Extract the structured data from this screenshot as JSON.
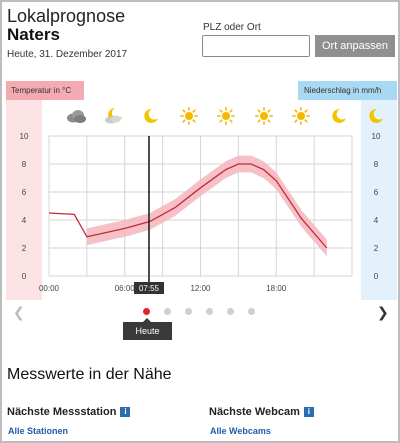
{
  "location": {
    "label": "Lokalprognose",
    "name": "Naters",
    "date": "Heute, 31. Dezember 2017"
  },
  "search": {
    "label": "PLZ oder Ort",
    "value": "",
    "placeholder": "",
    "button": "Ort anpassen"
  },
  "panel_labels": {
    "temperature": "Temperatur in °C",
    "precipitation": "Niederschlag in mm/h"
  },
  "weather_icons": [
    {
      "icon": "cloud-icon"
    },
    {
      "icon": "moon-cloud-icon"
    },
    {
      "icon": "moon-icon"
    },
    {
      "icon": "sun-icon"
    },
    {
      "icon": "sun-icon"
    },
    {
      "icon": "sun-icon"
    },
    {
      "icon": "sun-icon"
    },
    {
      "icon": "moon-icon"
    },
    {
      "icon": "moon-icon"
    }
  ],
  "chart_data": {
    "type": "line",
    "x_ticks": [
      "00:00",
      "06:00",
      "12:00",
      "18:00"
    ],
    "y_left_ticks": [
      "0",
      "2",
      "4",
      "6",
      "8",
      "10"
    ],
    "y_right_ticks": [
      "0",
      "2",
      "4",
      "6",
      "8",
      "10"
    ],
    "ylim": [
      0,
      10
    ],
    "xlim_hours": [
      0,
      24
    ],
    "current_time": "07:55",
    "current_time_hours": 7.92,
    "series": [
      {
        "x_hours": [
          0,
          2,
          3,
          4,
          6,
          8,
          10,
          12,
          14,
          15,
          16,
          17,
          18,
          20,
          22
        ],
        "values": [
          4.5,
          4.4,
          2.8,
          3.0,
          3.4,
          3.9,
          4.9,
          6.3,
          7.6,
          8.0,
          8.0,
          7.6,
          6.8,
          4.1,
          2.0
        ]
      }
    ],
    "band_spread": 0.6,
    "colors": {
      "line": "#c8283a",
      "band": "#f3b6bc",
      "grid": "#d6d6d6"
    }
  },
  "pager": {
    "pages": 6,
    "active": 0,
    "tooltip": "Heute"
  },
  "nearby": {
    "title": "Messwerte in der Nähe",
    "station": {
      "title": "Nächste Messstation",
      "link": "Alle Stationen"
    },
    "webcam": {
      "title": "Nächste Webcam",
      "link": "Alle Webcams"
    }
  }
}
